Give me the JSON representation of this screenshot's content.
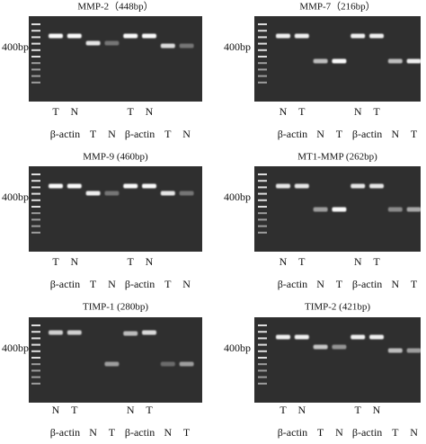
{
  "panels": [
    {
      "title": "MMP-2（448bp）",
      "marker_label": "400bp",
      "labels_top": [
        "T",
        "N",
        "T",
        "N"
      ],
      "labels_bottom": [
        "β-actin",
        "T",
        "N",
        "β-actin",
        "T",
        "N"
      ]
    },
    {
      "title": "MMP-7（216bp）",
      "marker_label": "400bp",
      "labels_top": [
        "N",
        "T",
        "N",
        "T"
      ],
      "labels_bottom": [
        "β-actin",
        "N",
        "T",
        "β-actin",
        "N",
        "T"
      ]
    },
    {
      "title": "MMP-9 (460bp)",
      "marker_label": "400bp",
      "labels_top": [
        "T",
        "N",
        "T",
        "N"
      ],
      "labels_bottom": [
        "β-actin",
        "T",
        "N",
        "β-actin",
        "T",
        "N"
      ]
    },
    {
      "title": "MT1-MMP (262bp)",
      "marker_label": "400bp",
      "labels_top": [
        "N",
        "T",
        "N",
        "T"
      ],
      "labels_bottom": [
        "β-actin",
        "N",
        "T",
        "β-actin",
        "N",
        "T"
      ]
    },
    {
      "title": "TIMP-1 (280bp)",
      "marker_label": "400bp",
      "labels_top": [
        "N",
        "T",
        "N",
        "T"
      ],
      "labels_bottom": [
        "β-actin",
        "N",
        "T",
        "β-actin",
        "N",
        "T"
      ]
    },
    {
      "title": "TIMP-2 (421bp)",
      "marker_label": "400bp",
      "labels_top": [
        "T",
        "N",
        "T",
        "N"
      ],
      "labels_bottom": [
        "β-actin",
        "T",
        "N",
        "β-actin",
        "T",
        "N"
      ]
    }
  ]
}
